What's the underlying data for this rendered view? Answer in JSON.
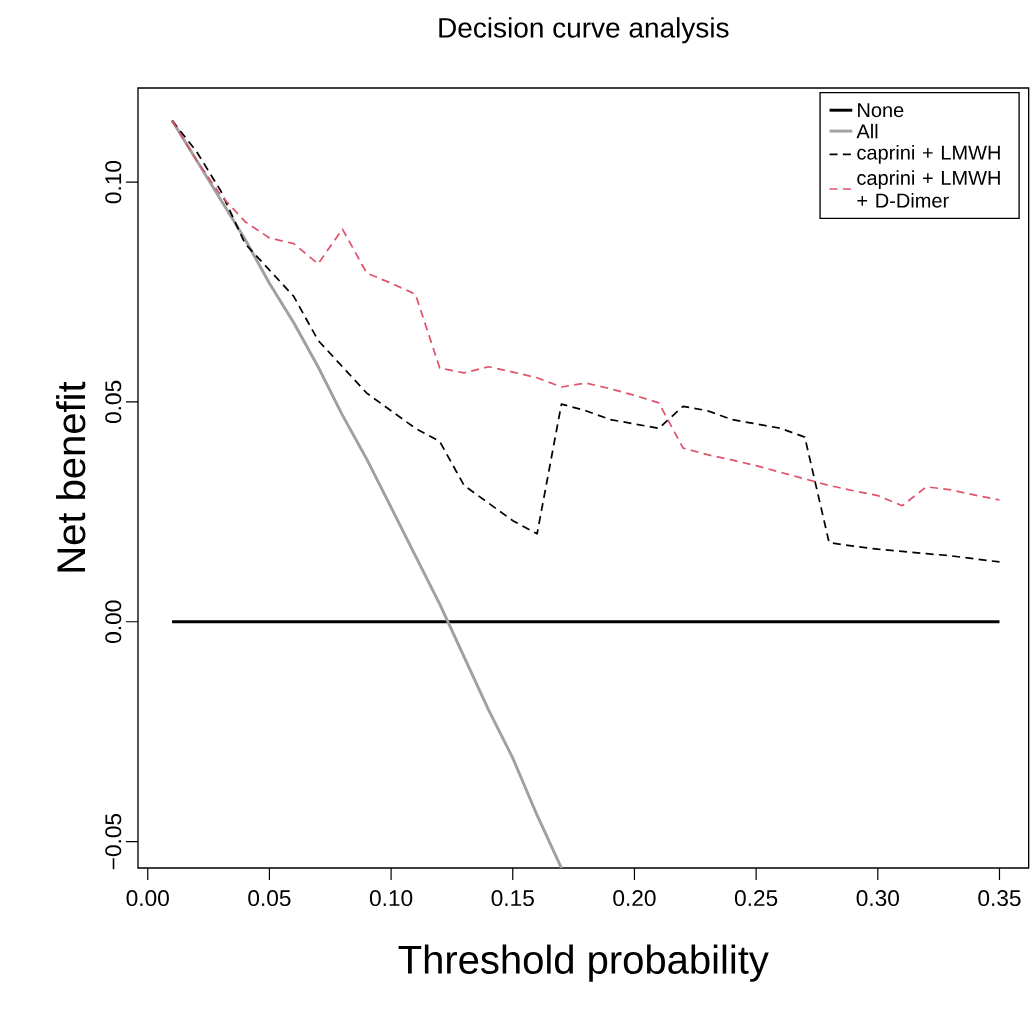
{
  "chart_data": {
    "type": "line",
    "title": "Decision curve analysis",
    "xlabel": "Threshold probability",
    "ylabel": "Net benefit",
    "xlim": [
      -0.004,
      0.362
    ],
    "ylim": [
      -0.056,
      0.1214
    ],
    "xticks": [
      {
        "value": 0,
        "label": "0.00"
      },
      {
        "value": 0.05,
        "label": "0.05"
      },
      {
        "value": 0.1,
        "label": "0.10"
      },
      {
        "value": 0.15,
        "label": "0.15"
      },
      {
        "value": 0.2,
        "label": "0.20"
      },
      {
        "value": 0.25,
        "label": "0.25"
      },
      {
        "value": 0.3,
        "label": "0.30"
      },
      {
        "value": 0.35,
        "label": "0.35"
      }
    ],
    "yticks": [
      {
        "value": -0.05,
        "label": "−0.05"
      },
      {
        "value": 0,
        "label": "0.00"
      },
      {
        "value": 0.05,
        "label": "0.05"
      },
      {
        "value": 0.1,
        "label": "0.10"
      }
    ],
    "grid": false,
    "legend": "top right",
    "series": [
      {
        "name": "None",
        "color": "#000000",
        "line_style": "solid",
        "x": [
          0.01,
          0.35
        ],
        "values": [
          0,
          0
        ]
      },
      {
        "name": "All",
        "color": "#a0a0a0",
        "line_style": "solid",
        "x": [
          0.01,
          0.02,
          0.03,
          0.04,
          0.05,
          0.06,
          0.07,
          0.08,
          0.09,
          0.1,
          0.11,
          0.12,
          0.13,
          0.14,
          0.15,
          0.16,
          0.17
        ],
        "values": [
          0.114,
          0.105,
          0.096,
          0.087,
          0.077,
          0.068,
          0.058,
          0.047,
          0.037,
          0.026,
          0.015,
          0.004,
          -0.008,
          -0.02,
          -0.031,
          -0.044,
          -0.056
        ]
      },
      {
        "name": "caprini + LMWH",
        "color": "#000000",
        "line_style": "dashed",
        "x": [
          0.01,
          0.02,
          0.03,
          0.04,
          0.05,
          0.06,
          0.07,
          0.08,
          0.09,
          0.1,
          0.11,
          0.12,
          0.13,
          0.14,
          0.15,
          0.16,
          0.17,
          0.18,
          0.19,
          0.2,
          0.21,
          0.22,
          0.23,
          0.24,
          0.25,
          0.26,
          0.27,
          0.28,
          0.29,
          0.3,
          0.31,
          0.32,
          0.33,
          0.34,
          0.35
        ],
        "values": [
          0.114,
          0.107,
          0.098,
          0.086,
          0.08,
          0.074,
          0.064,
          0.058,
          0.052,
          0.048,
          0.044,
          0.041,
          0.031,
          0.027,
          0.023,
          0.02,
          0.0495,
          0.048,
          0.046,
          0.045,
          0.044,
          0.049,
          0.048,
          0.046,
          0.045,
          0.044,
          0.042,
          0.018,
          0.0172,
          0.0165,
          0.016,
          0.0155,
          0.015,
          0.0143,
          0.0136
        ]
      },
      {
        "name": "caprini + LMWH + D-Dimer",
        "color": "#df536b",
        "line_style": "dashed",
        "x": [
          0.01,
          0.02,
          0.03,
          0.04,
          0.05,
          0.06,
          0.07,
          0.08,
          0.09,
          0.1,
          0.11,
          0.12,
          0.13,
          0.14,
          0.15,
          0.16,
          0.17,
          0.18,
          0.19,
          0.2,
          0.21,
          0.22,
          0.23,
          0.24,
          0.25,
          0.26,
          0.27,
          0.28,
          0.29,
          0.3,
          0.31,
          0.32,
          0.33,
          0.34,
          0.35
        ],
        "values": [
          0.114,
          0.105,
          0.097,
          0.091,
          0.0873,
          0.086,
          0.0814,
          0.0893,
          0.0793,
          0.077,
          0.0745,
          0.0577,
          0.0566,
          0.058,
          0.0568,
          0.0555,
          0.0534,
          0.0543,
          0.053,
          0.0515,
          0.0498,
          0.0395,
          0.038,
          0.0368,
          0.0355,
          0.034,
          0.0325,
          0.031,
          0.0298,
          0.0287,
          0.0264,
          0.0307,
          0.03,
          0.0288,
          0.0277
        ]
      }
    ]
  }
}
